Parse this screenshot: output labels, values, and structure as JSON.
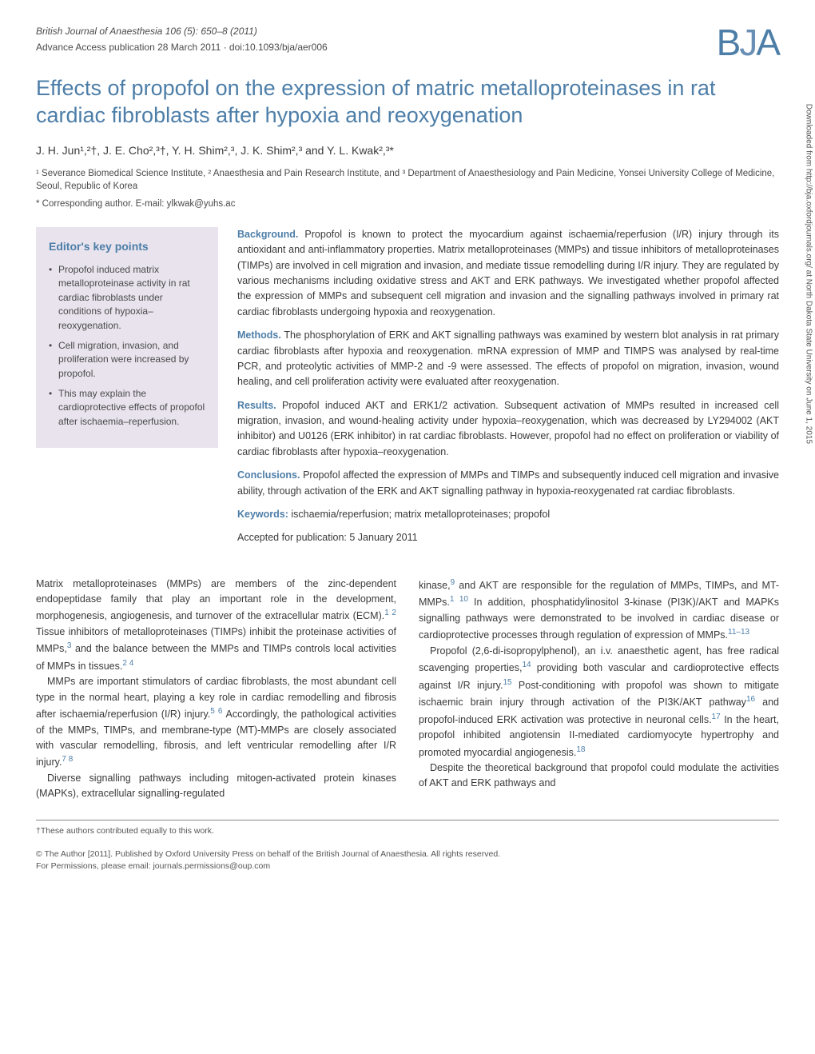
{
  "journal": {
    "citation": "British Journal of Anaesthesia 106 (5): 650–8 (2011)",
    "advance": "Advance Access publication 28 March 2011 · doi:10.1093/bja/aer006",
    "logo_b": "B",
    "logo_j": "J",
    "logo_a": "A"
  },
  "title": "Effects of propofol on the expression of matric metalloproteinases in rat cardiac fibroblasts after hypoxia and reoxygenation",
  "authors": "J. H. Jun¹,²†, J. E. Cho²,³†, Y. H. Shim²,³, J. K. Shim²,³ and Y. L. Kwak²,³*",
  "affiliations": "¹ Severance Biomedical Science Institute, ² Anaesthesia and Pain Research Institute, and ³ Department of Anaesthesiology and Pain Medicine, Yonsei University College of Medicine, Seoul, Republic of Korea",
  "corresponding": "* Corresponding author. E-mail: ylkwak@yuhs.ac",
  "editor": {
    "heading": "Editor's key points",
    "points": [
      "Propofol induced matrix metalloproteinase activity in rat cardiac fibroblasts under conditions of hypoxia–reoxygenation.",
      "Cell migration, invasion, and proliferation were increased by propofol.",
      "This may explain the cardioprotective effects of propofol after ischaemia–reperfusion."
    ]
  },
  "abstract": {
    "background_label": "Background.",
    "background": " Propofol is known to protect the myocardium against ischaemia/reperfusion (I/R) injury through its antioxidant and anti-inflammatory properties. Matrix metalloproteinases (MMPs) and tissue inhibitors of metalloproteinases (TIMPs) are involved in cell migration and invasion, and mediate tissue remodelling during I/R injury. They are regulated by various mechanisms including oxidative stress and AKT and ERK pathways. We investigated whether propofol affected the expression of MMPs and subsequent cell migration and invasion and the signalling pathways involved in primary rat cardiac fibroblasts undergoing hypoxia and reoxygenation.",
    "methods_label": "Methods.",
    "methods": " The phosphorylation of ERK and AKT signalling pathways was examined by western blot analysis in rat primary cardiac fibroblasts after hypoxia and reoxygenation. mRNA expression of MMP and TIMPS was analysed by real-time PCR, and proteolytic activities of MMP-2 and -9 were assessed. The effects of propofol on migration, invasion, wound healing, and cell proliferation activity were evaluated after reoxygenation.",
    "results_label": "Results.",
    "results": " Propofol induced AKT and ERK1/2 activation. Subsequent activation of MMPs resulted in increased cell migration, invasion, and wound-healing activity under hypoxia–reoxygenation, which was decreased by LY294002 (AKT inhibitor) and U0126 (ERK inhibitor) in rat cardiac fibroblasts. However, propofol had no effect on proliferation or viability of cardiac fibroblasts after hypoxia–reoxygenation.",
    "conclusions_label": "Conclusions.",
    "conclusions": " Propofol affected the expression of MMPs and TIMPs and subsequently induced cell migration and invasive ability, through activation of the ERK and AKT signalling pathway in hypoxia-reoxygenated rat cardiac fibroblasts.",
    "keywords_label": "Keywords:",
    "keywords": " ischaemia/reperfusion; matrix metalloproteinases; propofol",
    "accepted": "Accepted for publication: 5 January 2011"
  },
  "body": {
    "left": {
      "p1a": "Matrix metalloproteinases (MMPs) are members of the zinc-dependent endopeptidase family that play an important role in the development, morphogenesis, angiogenesis, and turnover of the extracellular matrix (ECM).",
      "p1_ref1": "1 2",
      "p1b": " Tissue inhibitors of metalloproteinases (TIMPs) inhibit the proteinase activities of MMPs,",
      "p1_ref2": "3",
      "p1c": " and the balance between the MMPs and TIMPs controls local activities of MMPs in tissues.",
      "p1_ref3": "2 4",
      "p2a": "MMPs are important stimulators of cardiac fibroblasts, the most abundant cell type in the normal heart, playing a key role in cardiac remodelling and fibrosis after ischaemia/reperfusion (I/R) injury.",
      "p2_ref1": "5 6",
      "p2b": " Accordingly, the pathological activities of the MMPs, TIMPs, and membrane-type (MT)-MMPs are closely associated with vascular remodelling, fibrosis, and left ventricular remodelling after I/R injury.",
      "p2_ref2": "7 8",
      "p3a": "Diverse signalling pathways including mitogen-activated protein kinases (MAPKs), extracellular signalling-regulated"
    },
    "right": {
      "p1a": "kinase,",
      "p1_ref1": "9",
      "p1b": " and AKT are responsible for the regulation of MMPs, TIMPs, and MT-MMPs.",
      "p1_ref2": "1 10",
      "p1c": " In addition, phosphatidylinositol 3-kinase (PI3K)/AKT and MAPKs signalling pathways were demonstrated to be involved in cardiac disease or cardioprotective processes through regulation of expression of MMPs.",
      "p1_ref3": "11–13",
      "p2a": "Propofol (2,6-di-isopropylphenol), an i.v. anaesthetic agent, has free radical scavenging properties,",
      "p2_ref1": "14",
      "p2b": " providing both vascular and cardioprotective effects against I/R injury.",
      "p2_ref2": "15",
      "p2c": " Post-conditioning with propofol was shown to mitigate ischaemic brain injury through activation of the PI3K/AKT pathway",
      "p2_ref3": "16",
      "p2d": " and propofol-induced ERK activation was protective in neuronal cells.",
      "p2_ref4": "17",
      "p2e": " In the heart, propofol inhibited angiotensin II-mediated cardiomyocyte hypertrophy and promoted myocardial angiogenesis.",
      "p2_ref5": "18",
      "p3a": "Despite the theoretical background that propofol could modulate the activities of AKT and ERK pathways and"
    }
  },
  "footer": {
    "equal": "†These authors contributed equally to this work.",
    "copyright1": "© The Author [2011]. Published by Oxford University Press on behalf of the British Journal of Anaesthesia. All rights reserved.",
    "copyright2": "For Permissions, please email: journals.permissions@oup.com"
  },
  "sidebar": "Downloaded from http://bja.oxfordjournals.org/ at North Dakota State University on June 1, 2015",
  "colors": {
    "brand": "#4d7ea8",
    "editor_bg": "#e8e3ed",
    "text": "#3a3a3a"
  }
}
